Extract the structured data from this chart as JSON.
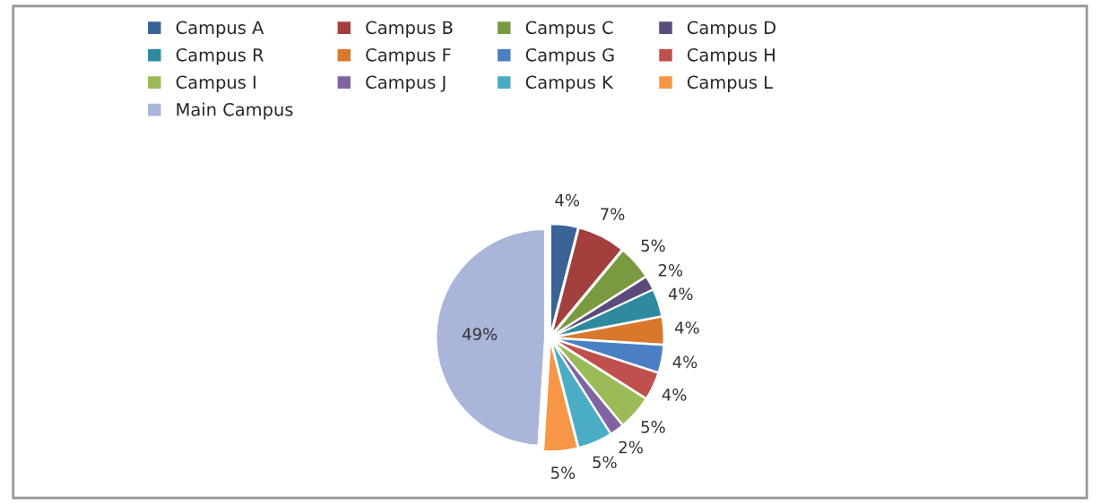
{
  "chart_data": {
    "type": "pie",
    "categories": [
      "Campus A",
      "Campus B",
      "Campus C",
      "Campus D",
      "Campus R",
      "Campus F",
      "Campus G",
      "Campus H",
      "Campus I",
      "Campus J",
      "Campus K",
      "Campus L",
      "Main Campus"
    ],
    "values": [
      4,
      7,
      5,
      2,
      4,
      4,
      4,
      4,
      5,
      2,
      5,
      5,
      49
    ],
    "value_labels": [
      "4%",
      "7%",
      "5%",
      "2%",
      "4%",
      "4%",
      "4%",
      "4%",
      "5%",
      "2%",
      "5%",
      "5%",
      "49%"
    ],
    "colors": [
      "#3a6396",
      "#a33f3c",
      "#7a9a3f",
      "#5c4a7c",
      "#2f8aa0",
      "#d9782c",
      "#4a7fc4",
      "#c0504d",
      "#9bbb59",
      "#8064a2",
      "#4bacc6",
      "#f79646",
      "#a9b6d9"
    ],
    "legend": "top"
  }
}
